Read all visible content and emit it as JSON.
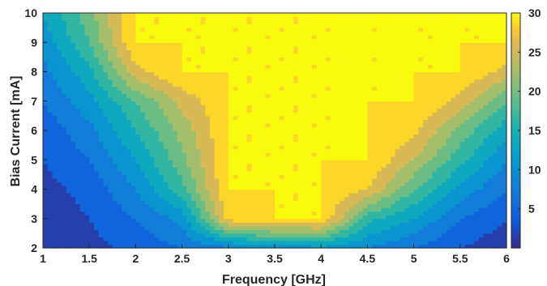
{
  "chart_data": {
    "type": "heatmap",
    "subtype": "filled-contour",
    "xlabel": "Frequency [GHz]",
    "ylabel": "Bias Current [mA]",
    "xlim": [
      1,
      6
    ],
    "ylim": [
      2,
      10
    ],
    "xticks": [
      "1",
      "1.5",
      "2",
      "2.5",
      "3",
      "3.5",
      "4",
      "4.5",
      "5",
      "5.5",
      "6"
    ],
    "yticks": [
      "2",
      "3",
      "4",
      "5",
      "6",
      "7",
      "8",
      "9",
      "10"
    ],
    "colorbar": {
      "range": [
        0,
        30
      ],
      "ticks": [
        "5",
        "10",
        "15",
        "20",
        "25",
        "30"
      ],
      "colormap": "parula"
    },
    "contour_levels": [
      3,
      6,
      9,
      12,
      15,
      18,
      21,
      24,
      27,
      30
    ],
    "x": [
      1,
      1.5,
      2,
      2.5,
      3,
      3.5,
      4,
      4.5,
      5,
      5.5,
      6
    ],
    "y": [
      2,
      3,
      4,
      5,
      6,
      7,
      8,
      9,
      10
    ],
    "values": [
      [
        0,
        2,
        4,
        6,
        8,
        10,
        11,
        9,
        6,
        3,
        1
      ],
      [
        1,
        3,
        6,
        10,
        28,
        30,
        30,
        16,
        12,
        6,
        3
      ],
      [
        2,
        4,
        9,
        17,
        30,
        30,
        30,
        27,
        18,
        11,
        6
      ],
      [
        3,
        6,
        12,
        20,
        30,
        30,
        30,
        30,
        24,
        16,
        9
      ],
      [
        4,
        8,
        15,
        22,
        30,
        30,
        30,
        30,
        28,
        20,
        13
      ],
      [
        6,
        11,
        18,
        25,
        30,
        30,
        30,
        30,
        30,
        26,
        18
      ],
      [
        8,
        14,
        26,
        30,
        30,
        30,
        30,
        30,
        30,
        30,
        26
      ],
      [
        10,
        18,
        30,
        30,
        30,
        30,
        30,
        30,
        30,
        30,
        30
      ],
      [
        12,
        20,
        30,
        30,
        30,
        30,
        30,
        30,
        30,
        30,
        30
      ]
    ]
  }
}
